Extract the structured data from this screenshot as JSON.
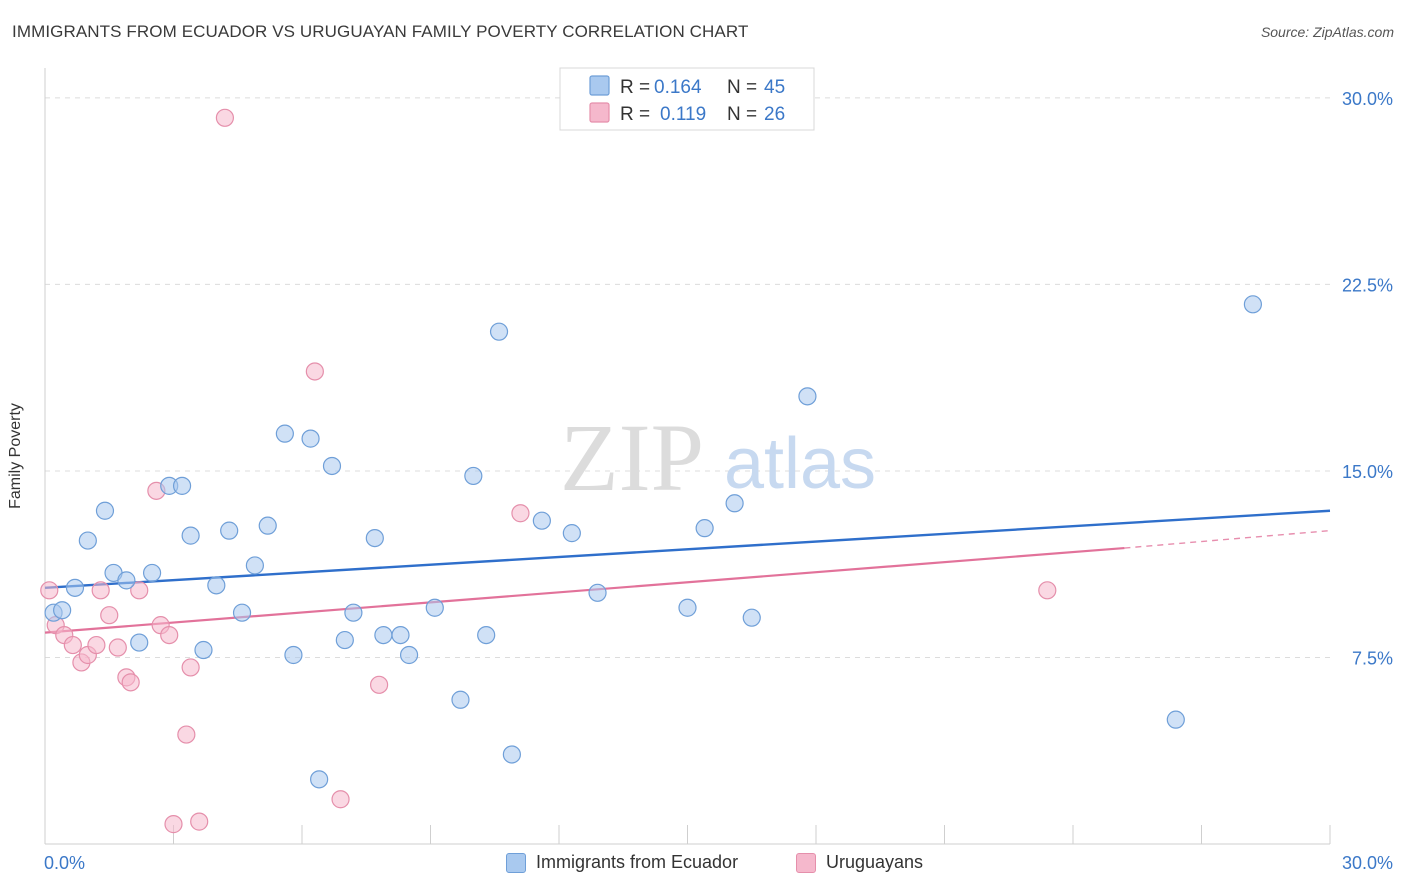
{
  "header": {
    "title": "IMMIGRANTS FROM ECUADOR VS URUGUAYAN FAMILY POVERTY CORRELATION CHART",
    "source": "Source: ZipAtlas.com"
  },
  "watermark": {
    "zip": "ZIP",
    "atlas": "atlas"
  },
  "colors": {
    "blue_fill": "#a9c9ef",
    "blue_stroke": "#6f9fd8",
    "blue_line": "#2f6fcb",
    "pink_fill": "#f5b8cc",
    "pink_stroke": "#e58fab",
    "pink_line": "#e2729a",
    "tick_label": "#3b78c8"
  },
  "chart_data": {
    "type": "scatter",
    "title": "IMMIGRANTS FROM ECUADOR VS URUGUAYAN FAMILY POVERTY CORRELATION CHART",
    "xlabel": "",
    "ylabel": "Family Poverty",
    "xlim": [
      0,
      30
    ],
    "ylim": [
      0,
      30.8
    ],
    "x_tick_labels": [
      "0.0%",
      "30.0%"
    ],
    "y_ticks": [
      7.5,
      15.0,
      22.5,
      30.0
    ],
    "y_tick_labels": [
      "7.5%",
      "15.0%",
      "22.5%",
      "30.0%"
    ],
    "grid": true,
    "legend_position": "top-center",
    "legend": [
      {
        "r_label": "R =",
        "r_value": "0.164",
        "n_label": "N =",
        "n_value": "45"
      },
      {
        "r_label": "R =",
        "r_value": "0.119",
        "n_label": "N =",
        "n_value": "26"
      }
    ],
    "series": [
      {
        "name": "Immigrants from Ecuador",
        "color": "#a9c9ef",
        "points": [
          [
            0.2,
            9.3
          ],
          [
            0.4,
            9.4
          ],
          [
            0.7,
            10.3
          ],
          [
            1.0,
            12.2
          ],
          [
            1.4,
            13.4
          ],
          [
            1.6,
            10.9
          ],
          [
            1.9,
            10.6
          ],
          [
            2.2,
            8.1
          ],
          [
            2.5,
            10.9
          ],
          [
            2.9,
            14.4
          ],
          [
            3.2,
            14.4
          ],
          [
            3.4,
            12.4
          ],
          [
            3.7,
            7.8
          ],
          [
            4.0,
            10.4
          ],
          [
            4.3,
            12.6
          ],
          [
            4.6,
            9.3
          ],
          [
            4.9,
            11.2
          ],
          [
            5.2,
            12.8
          ],
          [
            5.6,
            16.5
          ],
          [
            5.8,
            7.6
          ],
          [
            6.2,
            16.3
          ],
          [
            6.4,
            2.6
          ],
          [
            6.7,
            15.2
          ],
          [
            7.0,
            8.2
          ],
          [
            7.2,
            9.3
          ],
          [
            7.7,
            12.3
          ],
          [
            7.9,
            8.4
          ],
          [
            8.3,
            8.4
          ],
          [
            8.5,
            7.6
          ],
          [
            9.1,
            9.5
          ],
          [
            9.7,
            5.8
          ],
          [
            10.0,
            14.8
          ],
          [
            10.3,
            8.4
          ],
          [
            10.6,
            20.6
          ],
          [
            10.9,
            3.6
          ],
          [
            11.6,
            13.0
          ],
          [
            12.3,
            12.5
          ],
          [
            12.9,
            10.1
          ],
          [
            15.0,
            9.5
          ],
          [
            15.4,
            12.7
          ],
          [
            16.1,
            13.7
          ],
          [
            16.5,
            9.1
          ],
          [
            17.8,
            18.0
          ],
          [
            26.4,
            5.0
          ],
          [
            28.2,
            21.7
          ]
        ]
      },
      {
        "name": "Uruguayans",
        "color": "#f5b8cc",
        "points": [
          [
            0.1,
            10.2
          ],
          [
            0.25,
            8.8
          ],
          [
            0.45,
            8.4
          ],
          [
            0.65,
            8.0
          ],
          [
            0.85,
            7.3
          ],
          [
            1.0,
            7.6
          ],
          [
            1.2,
            8.0
          ],
          [
            1.3,
            10.2
          ],
          [
            1.5,
            9.2
          ],
          [
            1.7,
            7.9
          ],
          [
            1.9,
            6.7
          ],
          [
            2.0,
            6.5
          ],
          [
            2.2,
            10.2
          ],
          [
            2.6,
            14.2
          ],
          [
            2.7,
            8.8
          ],
          [
            2.9,
            8.4
          ],
          [
            3.0,
            0.8
          ],
          [
            3.3,
            4.4
          ],
          [
            3.4,
            7.1
          ],
          [
            3.6,
            0.9
          ],
          [
            4.2,
            29.2
          ],
          [
            6.3,
            19.0
          ],
          [
            6.9,
            1.8
          ],
          [
            7.8,
            6.4
          ],
          [
            11.1,
            13.3
          ],
          [
            23.4,
            10.2
          ]
        ]
      }
    ],
    "trend_lines": [
      {
        "series": "Immigrants from Ecuador",
        "x": [
          0,
          30
        ],
        "y": [
          10.3,
          13.4
        ]
      },
      {
        "series": "Uruguayans",
        "x": [
          0,
          25.2
        ],
        "y": [
          8.5,
          11.9
        ],
        "dashed_to": [
          30,
          12.6
        ]
      }
    ]
  }
}
